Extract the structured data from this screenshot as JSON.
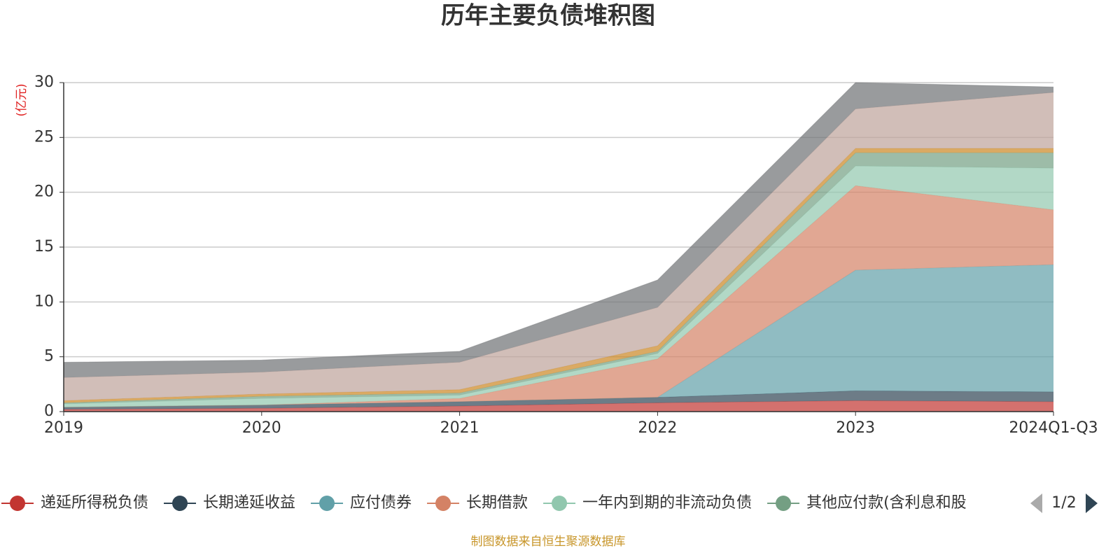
{
  "chart_data": {
    "type": "stacked-area",
    "title": "历年主要负债堆积图",
    "y_axis_label": "(亿元)",
    "source": "制图数据来自恒生聚源数据库",
    "legend_page": "1/2",
    "categories": [
      "2019",
      "2020",
      "2021",
      "2022",
      "2023",
      "2024Q1-Q3"
    ],
    "ylim": [
      0,
      30
    ],
    "yticks": [
      0,
      5,
      10,
      15,
      20,
      25,
      30
    ],
    "grid": true,
    "series": [
      {
        "name": "递延所得税负债",
        "color": "#c23531",
        "values": [
          0.2,
          0.3,
          0.5,
          0.8,
          1.0,
          0.9
        ]
      },
      {
        "name": "长期递延收益",
        "color": "#2f4554",
        "values": [
          0.2,
          0.3,
          0.4,
          0.5,
          0.9,
          0.9
        ]
      },
      {
        "name": "应付债券",
        "color": "#61a0a8",
        "values": [
          0,
          0,
          0,
          0,
          11.0,
          11.6
        ]
      },
      {
        "name": "长期借款",
        "color": "#d48265",
        "values": [
          0,
          0,
          0.3,
          3.5,
          7.7,
          5.0
        ]
      },
      {
        "name": "一年内到期的非流动负债",
        "color": "#91c7ae",
        "values": [
          0.3,
          0.6,
          0.3,
          0.5,
          1.8,
          3.8
        ]
      },
      {
        "name": "其他应付款(含利息和股",
        "color": "#749f83",
        "values": [
          0.1,
          0.2,
          0.2,
          0.2,
          1.2,
          1.4
        ]
      },
      {
        "color": "#ca8622",
        "values": [
          0.2,
          0.2,
          0.3,
          0.5,
          0.4,
          0.4
        ]
      },
      {
        "color": "#bda29a",
        "values": [
          2.1,
          2.0,
          2.5,
          3.5,
          3.6,
          5.1
        ]
      },
      {
        "color": "#6e7074",
        "values": [
          1.4,
          1.1,
          1.0,
          2.5,
          2.4,
          0.5
        ]
      }
    ]
  }
}
